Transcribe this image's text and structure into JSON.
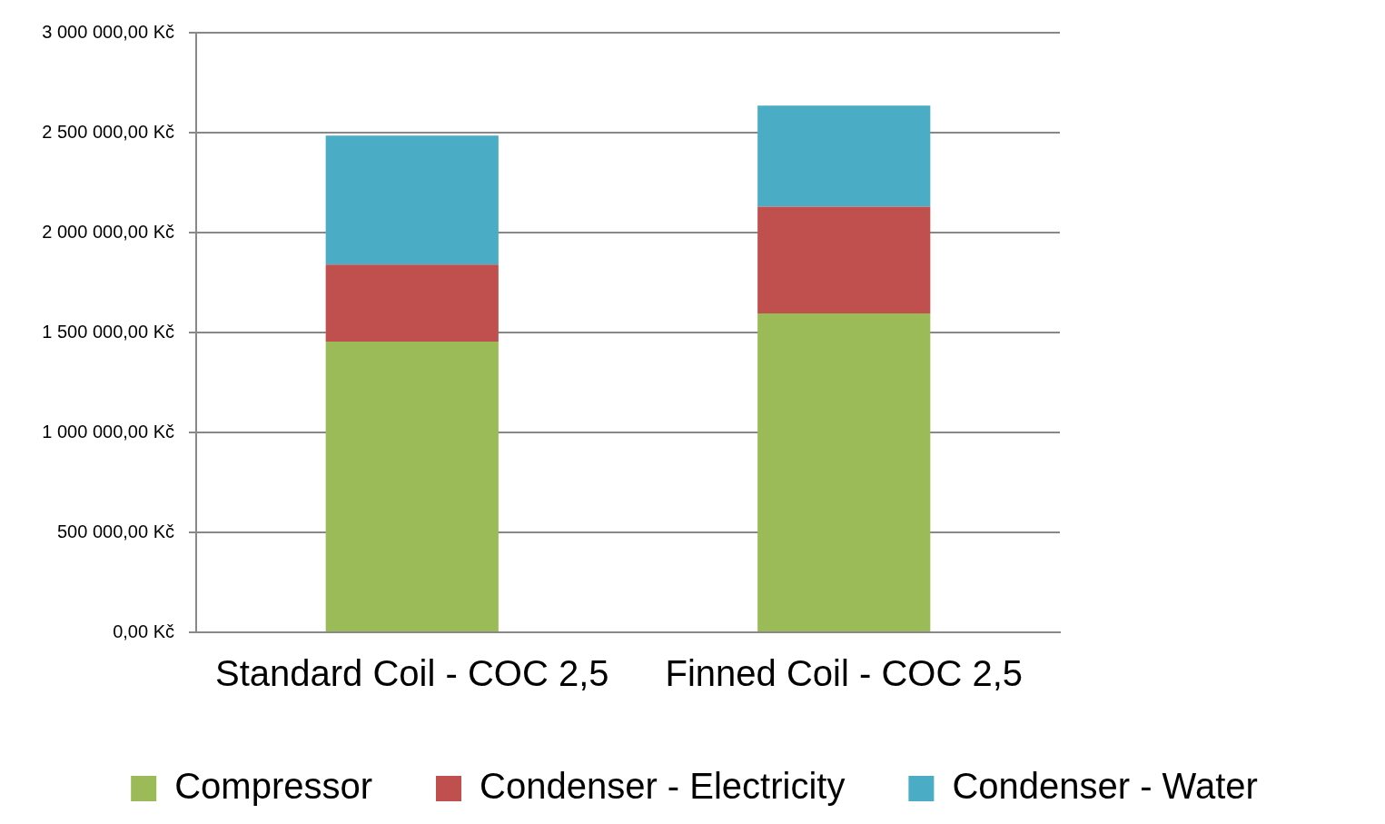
{
  "chart_data": {
    "type": "bar",
    "stacked": true,
    "categories": [
      "Standard Coil - COC 2,5",
      "Finned Coil - COC 2,5"
    ],
    "series": [
      {
        "name": "Compressor",
        "color": "#9bbb59",
        "values": [
          1455000,
          1595000
        ]
      },
      {
        "name": "Condenser - Electricity",
        "color": "#c0504d",
        "values": [
          385000,
          535000
        ]
      },
      {
        "name": "Condenser - Water",
        "color": "#4bacc6",
        "values": [
          645000,
          505000
        ]
      }
    ],
    "ylim": [
      0,
      3000000
    ],
    "yticks": [
      {
        "value": 0,
        "label": "0,00 Kč"
      },
      {
        "value": 500000,
        "label": "500 000,00 Kč"
      },
      {
        "value": 1000000,
        "label": "1 000 000,00 Kč"
      },
      {
        "value": 1500000,
        "label": "1 500 000,00 Kč"
      },
      {
        "value": 2000000,
        "label": "2 000 000,00 Kč"
      },
      {
        "value": 2500000,
        "label": "2 500 000,00 Kč"
      },
      {
        "value": 3000000,
        "label": "3 000 000,00 Kč"
      }
    ],
    "grid": "y",
    "legend": "bottom"
  }
}
